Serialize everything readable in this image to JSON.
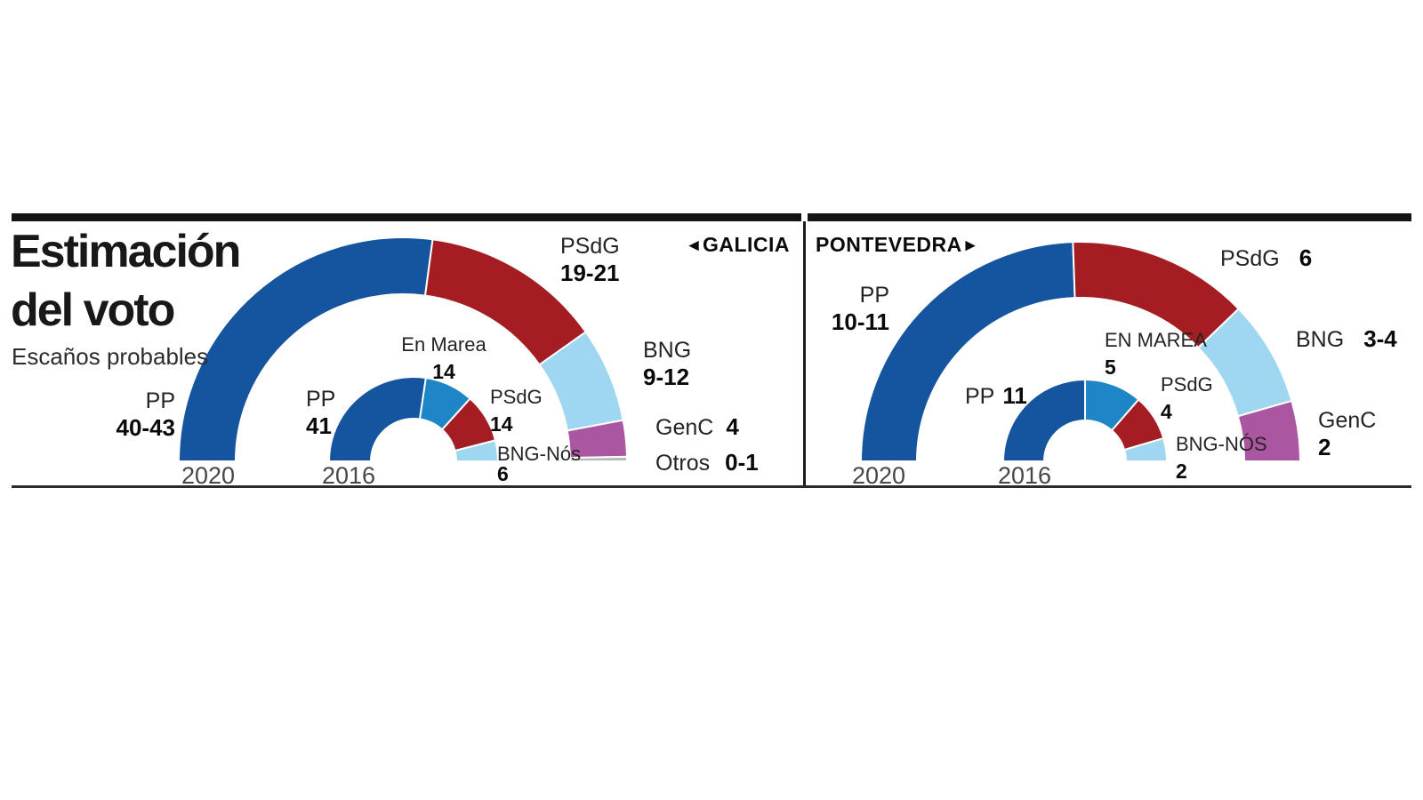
{
  "page": {
    "title_line1": "Estimación",
    "title_line2": "del voto",
    "subtitle": "Escaños probables"
  },
  "regions": {
    "left": {
      "label": "GALICIA",
      "arrow": "◄"
    },
    "right": {
      "label": "PONTEVEDRA",
      "arrow": "►"
    }
  },
  "colors": {
    "pp": "#15549e",
    "en_marea": "#1e85c6",
    "psdg": "#a41d23",
    "bng": "#9fd7f0",
    "genc": "#ab56a1",
    "otros": "#b5b8ba"
  },
  "chart_data": [
    {
      "id": "galicia-2020",
      "type": "half-donut",
      "region": "Galicia",
      "year": "2020",
      "note": "Escaños probables",
      "series": [
        {
          "party": "PP",
          "value_label": "40-43",
          "value": 41.5,
          "color_key": "pp"
        },
        {
          "party": "PSdG",
          "value_label": "19-21",
          "value": 20,
          "color_key": "psdg"
        },
        {
          "party": "BNG",
          "value_label": "9-12",
          "value": 10.5,
          "color_key": "bng"
        },
        {
          "party": "GenC",
          "value_label": "4",
          "value": 4,
          "color_key": "genc"
        },
        {
          "party": "Otros",
          "value_label": "0-1",
          "value": 0.5,
          "color_key": "otros"
        }
      ]
    },
    {
      "id": "galicia-2016",
      "type": "half-donut",
      "region": "Galicia",
      "year": "2016",
      "series": [
        {
          "party": "PP",
          "value_label": "41",
          "value": 41,
          "color_key": "pp"
        },
        {
          "party": "En Marea",
          "value_label": "14",
          "value": 14,
          "color_key": "en_marea"
        },
        {
          "party": "PSdG",
          "value_label": "14",
          "value": 14,
          "color_key": "psdg"
        },
        {
          "party": "BNG-Nós",
          "value_label": "6",
          "value": 6,
          "color_key": "bng"
        }
      ]
    },
    {
      "id": "pontevedra-2020",
      "type": "half-donut",
      "region": "Pontevedra",
      "year": "2020",
      "series": [
        {
          "party": "PP",
          "value_label": "10-11",
          "value": 11,
          "color_key": "pp"
        },
        {
          "party": "PSdG",
          "value_label": "6",
          "value": 6,
          "color_key": "psdg"
        },
        {
          "party": "BNG",
          "value_label": "3-4",
          "value": 3.5,
          "color_key": "bng"
        },
        {
          "party": "GenC",
          "value_label": "2",
          "value": 2,
          "color_key": "genc"
        }
      ]
    },
    {
      "id": "pontevedra-2016",
      "type": "half-donut",
      "region": "Pontevedra",
      "year": "2016",
      "series": [
        {
          "party": "PP",
          "value_label": "11",
          "value": 11,
          "color_key": "pp"
        },
        {
          "party": "EN MAREA",
          "value_label": "5",
          "value": 5,
          "color_key": "en_marea"
        },
        {
          "party": "PSdG",
          "value_label": "4",
          "value": 4,
          "color_key": "psdg"
        },
        {
          "party": "BNG-NÓS",
          "value_label": "2",
          "value": 2,
          "color_key": "bng"
        }
      ]
    }
  ]
}
